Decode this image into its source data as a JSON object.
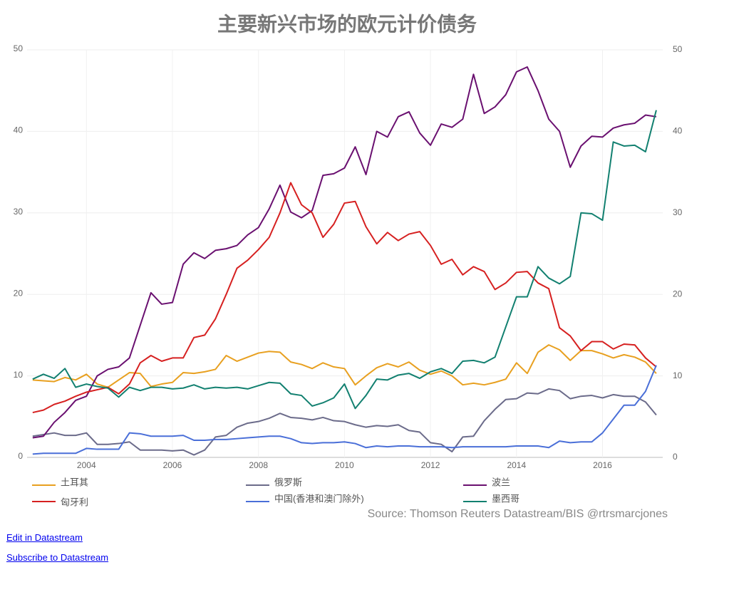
{
  "chart_data": {
    "type": "line",
    "title": "主要新兴市场的欧元计价债务",
    "source": "Source: Thomson Reuters Datastream/BIS @rtrsmarcjones",
    "x": [
      2002.75,
      2003,
      2003.25,
      2003.5,
      2003.75,
      2004,
      2004.25,
      2004.5,
      2004.75,
      2005,
      2005.25,
      2005.5,
      2005.75,
      2006,
      2006.25,
      2006.5,
      2006.75,
      2007,
      2007.25,
      2007.5,
      2007.75,
      2008,
      2008.25,
      2008.5,
      2008.75,
      2009,
      2009.25,
      2009.5,
      2009.75,
      2010,
      2010.25,
      2010.5,
      2010.75,
      2011,
      2011.25,
      2011.5,
      2011.75,
      2012,
      2012.25,
      2012.5,
      2012.75,
      2013,
      2013.25,
      2013.5,
      2013.75,
      2014,
      2014.25,
      2014.5,
      2014.75,
      2015,
      2015.25,
      2015.5,
      2015.75,
      2016,
      2016.25,
      2016.5,
      2016.75,
      2017,
      2017.25
    ],
    "xlim": [
      2002.62,
      2017.4
    ],
    "xticks": [
      2004,
      2006,
      2008,
      2010,
      2012,
      2014,
      2016
    ],
    "ylim": [
      0,
      50
    ],
    "yticks": [
      0,
      10,
      20,
      30,
      40,
      50
    ],
    "y2lim": [
      0,
      50
    ],
    "y2ticks": [
      0,
      10,
      20,
      30,
      40,
      50
    ],
    "grid": true,
    "series": [
      {
        "name": "土耳其",
        "color": "#e8a020",
        "values": [
          9.5,
          9.4,
          9.3,
          9.8,
          9.5,
          10.2,
          9.0,
          8.6,
          9.5,
          10.4,
          10.3,
          8.7,
          9.0,
          9.2,
          10.4,
          10.3,
          10.5,
          10.8,
          12.5,
          11.8,
          12.3,
          12.8,
          13.0,
          12.9,
          11.7,
          11.4,
          10.9,
          11.6,
          11.1,
          10.9,
          8.9,
          10.0,
          11.0,
          11.5,
          11.1,
          11.7,
          10.7,
          10.2,
          10.6,
          10.0,
          8.9,
          9.1,
          8.9,
          9.2,
          9.6,
          11.6,
          10.3,
          12.9,
          13.8,
          13.2,
          11.9,
          13.1,
          13.1,
          12.7,
          12.2,
          12.6,
          12.3,
          11.7,
          10.3
        ]
      },
      {
        "name": "俄罗斯",
        "color": "#6b6b8a",
        "values": [
          2.6,
          2.8,
          3.0,
          2.7,
          2.7,
          3.0,
          1.6,
          1.6,
          1.7,
          1.9,
          0.9,
          0.9,
          0.9,
          0.8,
          0.9,
          0.3,
          0.9,
          2.5,
          2.7,
          3.7,
          4.2,
          4.4,
          4.8,
          5.4,
          4.9,
          4.8,
          4.6,
          4.9,
          4.5,
          4.4,
          4.0,
          3.7,
          3.9,
          3.8,
          4.0,
          3.3,
          3.1,
          1.8,
          1.6,
          0.7,
          2.5,
          2.6,
          4.5,
          5.9,
          7.1,
          7.2,
          7.9,
          7.8,
          8.4,
          8.2,
          7.2,
          7.5,
          7.6,
          7.3,
          7.7,
          7.5,
          7.5,
          6.8,
          5.2
        ]
      },
      {
        "name": "波兰",
        "color": "#6a1070",
        "values": [
          2.4,
          2.6,
          4.3,
          5.5,
          7.0,
          7.5,
          10.0,
          10.8,
          11.1,
          12.2,
          16.2,
          20.2,
          18.8,
          19.0,
          23.7,
          25.1,
          24.4,
          25.4,
          25.6,
          26.0,
          27.3,
          28.2,
          30.5,
          33.4,
          30.1,
          29.4,
          30.3,
          34.6,
          34.8,
          35.5,
          38.1,
          34.7,
          40.0,
          39.3,
          41.8,
          42.4,
          39.8,
          38.3,
          40.9,
          40.5,
          41.5,
          47.0,
          42.2,
          43.0,
          44.5,
          47.3,
          47.9,
          45.0,
          41.5,
          40.0,
          35.6,
          38.2,
          39.4,
          39.3,
          40.4,
          40.8,
          41.0,
          42.0,
          41.8
        ]
      },
      {
        "name": "匈牙利",
        "color": "#d62020",
        "values": [
          5.5,
          5.8,
          6.5,
          6.9,
          7.5,
          8.0,
          8.3,
          8.6,
          7.8,
          9.0,
          11.6,
          12.5,
          11.8,
          12.2,
          12.2,
          14.7,
          15.0,
          17.0,
          20.0,
          23.2,
          24.2,
          25.5,
          27.0,
          30.0,
          33.7,
          31.0,
          30.0,
          27.0,
          28.6,
          31.2,
          31.4,
          28.3,
          26.2,
          27.6,
          26.6,
          27.4,
          27.7,
          26.0,
          23.7,
          24.3,
          22.4,
          23.4,
          22.8,
          20.6,
          21.4,
          22.7,
          22.8,
          21.4,
          20.7,
          15.9,
          14.9,
          13.1,
          14.2,
          14.2,
          13.3,
          13.9,
          13.8,
          12.2,
          11.1
        ]
      },
      {
        "name": "中国(香港和澳门除外)",
        "color": "#4a6fd8",
        "values": [
          0.4,
          0.5,
          0.5,
          0.5,
          0.5,
          1.1,
          1.0,
          1.0,
          1.0,
          3.0,
          2.9,
          2.6,
          2.6,
          2.6,
          2.7,
          2.1,
          2.1,
          2.2,
          2.2,
          2.3,
          2.4,
          2.5,
          2.6,
          2.6,
          2.3,
          1.8,
          1.7,
          1.8,
          1.8,
          1.9,
          1.7,
          1.2,
          1.4,
          1.3,
          1.4,
          1.4,
          1.3,
          1.3,
          1.3,
          1.2,
          1.3,
          1.3,
          1.3,
          1.3,
          1.3,
          1.4,
          1.4,
          1.4,
          1.2,
          2.0,
          1.8,
          1.9,
          1.9,
          3.0,
          4.7,
          6.4,
          6.4,
          8.1,
          11.3
        ]
      },
      {
        "name": "墨西哥",
        "color": "#128070",
        "values": [
          9.6,
          10.2,
          9.7,
          10.9,
          8.6,
          9.0,
          8.7,
          8.5,
          7.4,
          8.6,
          8.2,
          8.6,
          8.6,
          8.4,
          8.5,
          8.9,
          8.4,
          8.6,
          8.5,
          8.6,
          8.4,
          8.8,
          9.2,
          9.1,
          7.8,
          7.6,
          6.3,
          6.7,
          7.3,
          9.0,
          6.0,
          7.6,
          9.6,
          9.5,
          10.1,
          10.3,
          9.7,
          10.5,
          10.9,
          10.3,
          11.8,
          11.9,
          11.6,
          12.3,
          16.0,
          19.7,
          19.7,
          23.4,
          22.0,
          21.3,
          22.2,
          30.0,
          29.9,
          29.1,
          38.7,
          38.2,
          38.3,
          37.5,
          42.6
        ]
      }
    ]
  },
  "links": [
    "Edit in Datastream",
    "Subscribe to Datastream"
  ]
}
